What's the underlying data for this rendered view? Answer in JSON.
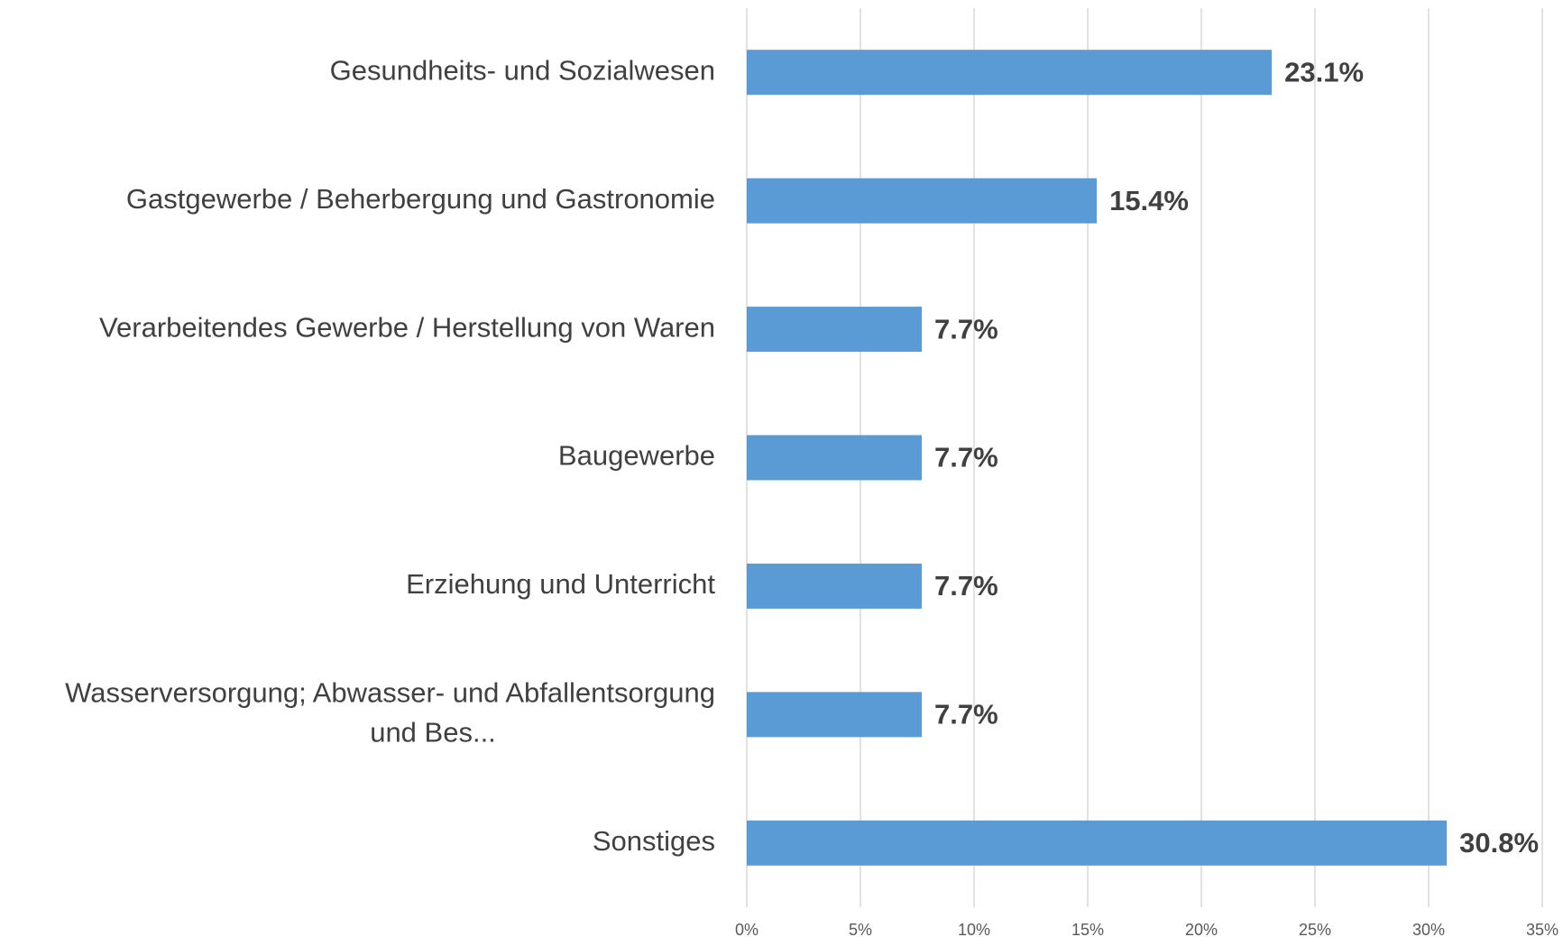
{
  "chart_data": {
    "type": "bar",
    "orientation": "horizontal",
    "categories": [
      "Gesundheits- und Sozialwesen",
      "Gastgewerbe / Beherbergung und Gastronomie",
      "Verarbeitendes Gewerbe / Herstellung von Waren",
      "Baugewerbe",
      "Erziehung und Unterricht",
      "Wasserversorgung; Abwasser- und Abfallentsorgung und Bes...",
      "Sonstiges"
    ],
    "values": [
      23.1,
      15.4,
      7.7,
      7.7,
      7.7,
      7.7,
      30.8
    ],
    "value_labels": [
      "23.1%",
      "15.4%",
      "7.7%",
      "7.7%",
      "7.7%",
      "7.7%",
      "30.8%"
    ],
    "color": "#5b9bd5",
    "xlim": [
      0,
      35
    ],
    "xticks": [
      {
        "value": 0,
        "label": "0%"
      },
      {
        "value": 5,
        "label": "5%"
      },
      {
        "value": 10,
        "label": "10%"
      },
      {
        "value": 15,
        "label": "15%"
      },
      {
        "value": 20,
        "label": "20%"
      },
      {
        "value": 25,
        "label": "25%"
      },
      {
        "value": 30,
        "label": "30%"
      },
      {
        "value": 35,
        "label": "35%"
      }
    ],
    "grid": true
  }
}
